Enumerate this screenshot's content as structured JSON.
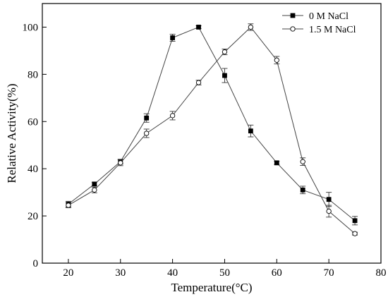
{
  "chart_data": {
    "type": "line",
    "xlabel": "Temperature(°C)",
    "ylabel": "Relative Activity(%)",
    "xlim": [
      15,
      80
    ],
    "ylim": [
      0,
      110
    ],
    "xticks": [
      20,
      30,
      40,
      50,
      60,
      70,
      80
    ],
    "yticks": [
      0,
      20,
      40,
      60,
      80,
      100
    ],
    "grid": false,
    "legend_position": "top-right",
    "series": [
      {
        "name": "0 M NaCl",
        "marker": "filled-square",
        "x": [
          20,
          25,
          30,
          35,
          40,
          45,
          50,
          55,
          60,
          65,
          70,
          75
        ],
        "y": [
          25,
          33.5,
          43,
          61.5,
          95.5,
          100,
          79.5,
          56,
          42.5,
          31,
          27,
          18
        ],
        "error": [
          1.2,
          0.8,
          1.0,
          1.8,
          1.5,
          0.6,
          3.0,
          2.5,
          0.7,
          1.6,
          3.0,
          1.8
        ]
      },
      {
        "name": "1.5 M NaCl",
        "marker": "open-circle",
        "x": [
          20,
          25,
          30,
          35,
          40,
          45,
          50,
          55,
          60,
          65,
          70,
          75
        ],
        "y": [
          24.5,
          31,
          42.5,
          55,
          62.5,
          76.5,
          89.5,
          100,
          86,
          43,
          22,
          12.5
        ],
        "error": [
          1.0,
          1.2,
          1.2,
          1.8,
          1.8,
          1.0,
          1.2,
          1.4,
          1.6,
          1.6,
          2.5,
          0.6
        ]
      }
    ]
  }
}
